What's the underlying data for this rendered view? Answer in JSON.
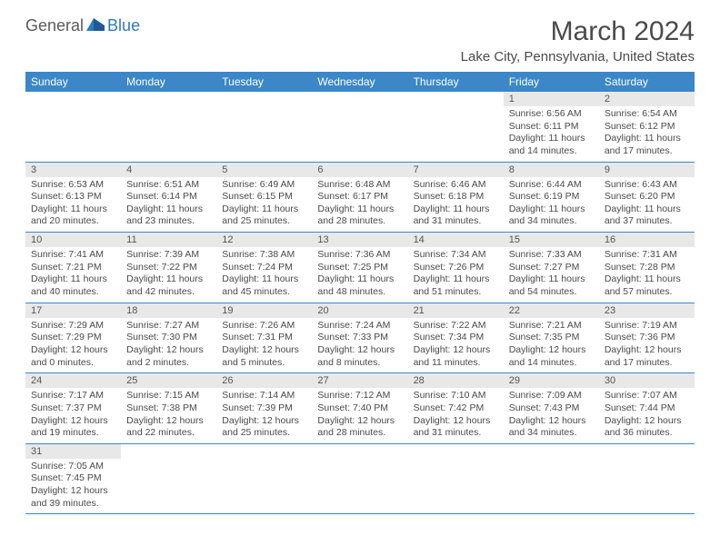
{
  "brand": {
    "word1": "General",
    "word2": "Blue"
  },
  "title": "March 2024",
  "location": "Lake City, Pennsylvania, United States",
  "colors": {
    "header_bg": "#3b87c8",
    "header_text": "#ffffff",
    "daynum_bg": "#e8e8e8",
    "row_border": "#3b87c8",
    "text": "#4a4a4a",
    "brand_blue": "#2f7ac0"
  },
  "daysOfWeek": [
    "Sunday",
    "Monday",
    "Tuesday",
    "Wednesday",
    "Thursday",
    "Friday",
    "Saturday"
  ],
  "firstDayIndex": 5,
  "daysInMonth": 31,
  "days": {
    "1": {
      "sunrise": "6:56 AM",
      "sunset": "6:11 PM",
      "daylight": "11 hours and 14 minutes."
    },
    "2": {
      "sunrise": "6:54 AM",
      "sunset": "6:12 PM",
      "daylight": "11 hours and 17 minutes."
    },
    "3": {
      "sunrise": "6:53 AM",
      "sunset": "6:13 PM",
      "daylight": "11 hours and 20 minutes."
    },
    "4": {
      "sunrise": "6:51 AM",
      "sunset": "6:14 PM",
      "daylight": "11 hours and 23 minutes."
    },
    "5": {
      "sunrise": "6:49 AM",
      "sunset": "6:15 PM",
      "daylight": "11 hours and 25 minutes."
    },
    "6": {
      "sunrise": "6:48 AM",
      "sunset": "6:17 PM",
      "daylight": "11 hours and 28 minutes."
    },
    "7": {
      "sunrise": "6:46 AM",
      "sunset": "6:18 PM",
      "daylight": "11 hours and 31 minutes."
    },
    "8": {
      "sunrise": "6:44 AM",
      "sunset": "6:19 PM",
      "daylight": "11 hours and 34 minutes."
    },
    "9": {
      "sunrise": "6:43 AM",
      "sunset": "6:20 PM",
      "daylight": "11 hours and 37 minutes."
    },
    "10": {
      "sunrise": "7:41 AM",
      "sunset": "7:21 PM",
      "daylight": "11 hours and 40 minutes."
    },
    "11": {
      "sunrise": "7:39 AM",
      "sunset": "7:22 PM",
      "daylight": "11 hours and 42 minutes."
    },
    "12": {
      "sunrise": "7:38 AM",
      "sunset": "7:24 PM",
      "daylight": "11 hours and 45 minutes."
    },
    "13": {
      "sunrise": "7:36 AM",
      "sunset": "7:25 PM",
      "daylight": "11 hours and 48 minutes."
    },
    "14": {
      "sunrise": "7:34 AM",
      "sunset": "7:26 PM",
      "daylight": "11 hours and 51 minutes."
    },
    "15": {
      "sunrise": "7:33 AM",
      "sunset": "7:27 PM",
      "daylight": "11 hours and 54 minutes."
    },
    "16": {
      "sunrise": "7:31 AM",
      "sunset": "7:28 PM",
      "daylight": "11 hours and 57 minutes."
    },
    "17": {
      "sunrise": "7:29 AM",
      "sunset": "7:29 PM",
      "daylight": "12 hours and 0 minutes."
    },
    "18": {
      "sunrise": "7:27 AM",
      "sunset": "7:30 PM",
      "daylight": "12 hours and 2 minutes."
    },
    "19": {
      "sunrise": "7:26 AM",
      "sunset": "7:31 PM",
      "daylight": "12 hours and 5 minutes."
    },
    "20": {
      "sunrise": "7:24 AM",
      "sunset": "7:33 PM",
      "daylight": "12 hours and 8 minutes."
    },
    "21": {
      "sunrise": "7:22 AM",
      "sunset": "7:34 PM",
      "daylight": "12 hours and 11 minutes."
    },
    "22": {
      "sunrise": "7:21 AM",
      "sunset": "7:35 PM",
      "daylight": "12 hours and 14 minutes."
    },
    "23": {
      "sunrise": "7:19 AM",
      "sunset": "7:36 PM",
      "daylight": "12 hours and 17 minutes."
    },
    "24": {
      "sunrise": "7:17 AM",
      "sunset": "7:37 PM",
      "daylight": "12 hours and 19 minutes."
    },
    "25": {
      "sunrise": "7:15 AM",
      "sunset": "7:38 PM",
      "daylight": "12 hours and 22 minutes."
    },
    "26": {
      "sunrise": "7:14 AM",
      "sunset": "7:39 PM",
      "daylight": "12 hours and 25 minutes."
    },
    "27": {
      "sunrise": "7:12 AM",
      "sunset": "7:40 PM",
      "daylight": "12 hours and 28 minutes."
    },
    "28": {
      "sunrise": "7:10 AM",
      "sunset": "7:42 PM",
      "daylight": "12 hours and 31 minutes."
    },
    "29": {
      "sunrise": "7:09 AM",
      "sunset": "7:43 PM",
      "daylight": "12 hours and 34 minutes."
    },
    "30": {
      "sunrise": "7:07 AM",
      "sunset": "7:44 PM",
      "daylight": "12 hours and 36 minutes."
    },
    "31": {
      "sunrise": "7:05 AM",
      "sunset": "7:45 PM",
      "daylight": "12 hours and 39 minutes."
    }
  },
  "labels": {
    "sunrise": "Sunrise:",
    "sunset": "Sunset:",
    "daylight": "Daylight:"
  }
}
